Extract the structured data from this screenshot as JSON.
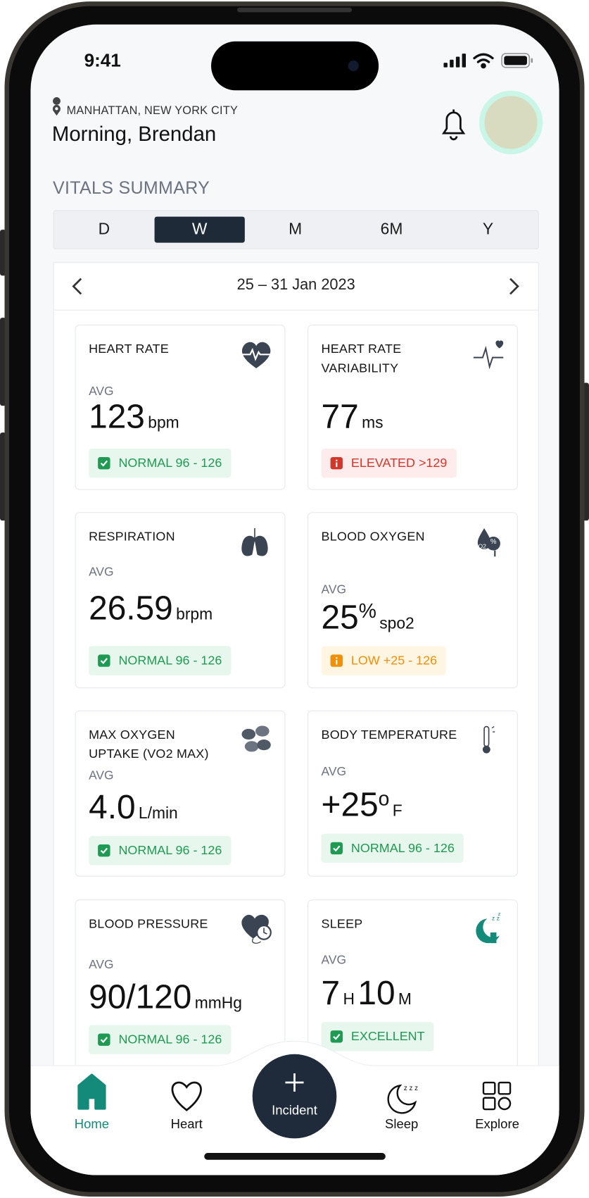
{
  "status_bar": {
    "time": "9:41"
  },
  "header": {
    "location": "MANHATTAN, NEW YORK CITY",
    "greeting": "Morning, Brendan"
  },
  "section_title": "VITALS SUMMARY",
  "tabs": [
    {
      "label": "D",
      "active": false
    },
    {
      "label": "W",
      "active": true
    },
    {
      "label": "M",
      "active": false
    },
    {
      "label": "6M",
      "active": false
    },
    {
      "label": "Y",
      "active": false
    }
  ],
  "date_range": "25 – 31 Jan 2023",
  "cards": [
    {
      "title": [
        "HEART RATE"
      ],
      "avg": "AVG",
      "value_parts": [
        {
          "text": "123",
          "style": "big"
        },
        {
          "text": "bpm",
          "style": "unit"
        }
      ],
      "status": "NORMAL 96 - 126",
      "level": "normal"
    },
    {
      "title": [
        "HEART RATE",
        "VARIABILITY"
      ],
      "value_parts": [
        {
          "text": "77",
          "style": "big"
        },
        {
          "text": "ms",
          "style": "unit"
        }
      ],
      "status": "ELEVATED >129",
      "level": "elevated"
    },
    {
      "title": [
        "RESPIRATION"
      ],
      "avg": "AVG",
      "value_parts": [
        {
          "text": "26.59",
          "style": "big"
        },
        {
          "text": "brpm",
          "style": "unit"
        }
      ],
      "status": "NORMAL 96 - 126",
      "level": "normal"
    },
    {
      "title": [
        "BLOOD OXYGEN"
      ],
      "avg": "AVG",
      "value_parts": [
        {
          "text": "25",
          "style": "big"
        },
        {
          "text": "%",
          "style": "sup"
        },
        {
          "text": "spo2",
          "style": "unit"
        }
      ],
      "status": "LOW +25 - 126",
      "level": "low"
    },
    {
      "title": [
        "MAX OXYGEN",
        "UPTAKE (VO2 MAX)"
      ],
      "avg": "AVG",
      "value_parts": [
        {
          "text": "4.0",
          "style": "big"
        },
        {
          "text": "L/min",
          "style": "unit"
        }
      ],
      "status": "NORMAL 96 - 126",
      "level": "normal"
    },
    {
      "title": [
        "BODY TEMPERATURE"
      ],
      "avg": "AVG",
      "value_parts": [
        {
          "text": "+25",
          "style": "big"
        },
        {
          "text": "o",
          "style": "sup"
        },
        {
          "text": "F",
          "style": "unit"
        }
      ],
      "status": "NORMAL 96 - 126",
      "level": "normal"
    },
    {
      "title": [
        "BLOOD PRESSURE"
      ],
      "avg": "AVG",
      "value_parts": [
        {
          "text": "90/120",
          "style": "big"
        },
        {
          "text": "mmHg",
          "style": "unit"
        }
      ],
      "status": "NORMAL 96 - 126",
      "level": "normal"
    },
    {
      "title": [
        "SLEEP"
      ],
      "avg": "AVG",
      "value_parts": [
        {
          "text": "7",
          "style": "big"
        },
        {
          "text": "H",
          "style": "unit"
        },
        {
          "text": "10",
          "style": "big"
        },
        {
          "text": "M",
          "style": "unit"
        }
      ],
      "status": "EXCELLENT",
      "level": "normal"
    }
  ],
  "nav": [
    {
      "label": "Home",
      "active": true
    },
    {
      "label": "Heart",
      "active": false
    },
    {
      "label": "Incident",
      "active": false
    },
    {
      "label": "Sleep",
      "active": false
    },
    {
      "label": "Explore",
      "active": false
    }
  ]
}
